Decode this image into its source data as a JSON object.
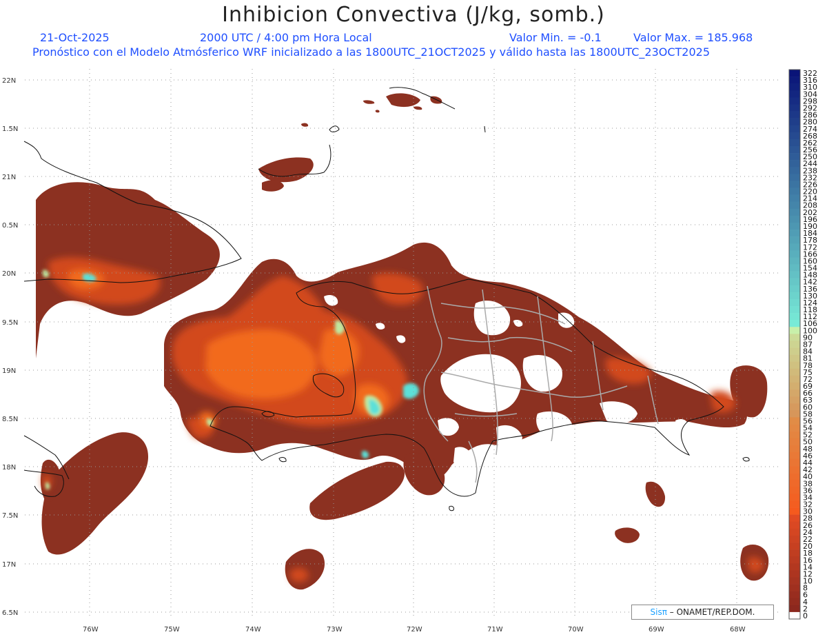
{
  "header": {
    "title": "Inhibicion Convectiva (J/kg, somb.)",
    "date": "21-Oct-2025",
    "time": "2000 UTC / 4:00 pm Hora Local",
    "valor_min": "Valor Min. = -0.1",
    "valor_max": "Valor Max. = 185.968",
    "forecast": "Pronóstico con el Modelo Atmósferico WRF inicializado a las 1800UTC_21OCT2025 y válido hasta las  1800UTC_23OCT2025"
  },
  "axes": {
    "lat_labels": [
      "22N",
      "1.5N",
      "21N",
      "0.5N",
      "20N",
      "9.5N",
      "19N",
      "8.5N",
      "18N",
      "7.5N",
      "17N",
      "6.5N"
    ],
    "lon_labels": [
      "76W",
      "75W",
      "74W",
      "73W",
      "72W",
      "71W",
      "70W",
      "69W",
      "68W"
    ]
  },
  "colorbar": {
    "labels": [
      "322",
      "316",
      "310",
      "304",
      "298",
      "292",
      "286",
      "280",
      "274",
      "268",
      "262",
      "256",
      "250",
      "244",
      "238",
      "232",
      "226",
      "220",
      "214",
      "208",
      "202",
      "196",
      "190",
      "184",
      "178",
      "172",
      "166",
      "160",
      "154",
      "148",
      "142",
      "136",
      "130",
      "124",
      "118",
      "112",
      "106",
      "100",
      "90",
      "87",
      "84",
      "81",
      "78",
      "75",
      "72",
      "69",
      "66",
      "63",
      "60",
      "58",
      "56",
      "54",
      "52",
      "50",
      "48",
      "46",
      "44",
      "42",
      "40",
      "38",
      "36",
      "34",
      "32",
      "30",
      "28",
      "26",
      "24",
      "22",
      "20",
      "18",
      "16",
      "14",
      "12",
      "10",
      "8",
      "6",
      "4",
      "2",
      "0"
    ]
  },
  "credit": {
    "sis": "Sisπ",
    "text": "– ONAMET/REP.DOM."
  },
  "colors": {
    "dark": "#8c3121",
    "mid": "#d24a1c",
    "bright": "#f26a1e",
    "cyan": "#5ce0d8",
    "pale": "#bfe8a0"
  }
}
